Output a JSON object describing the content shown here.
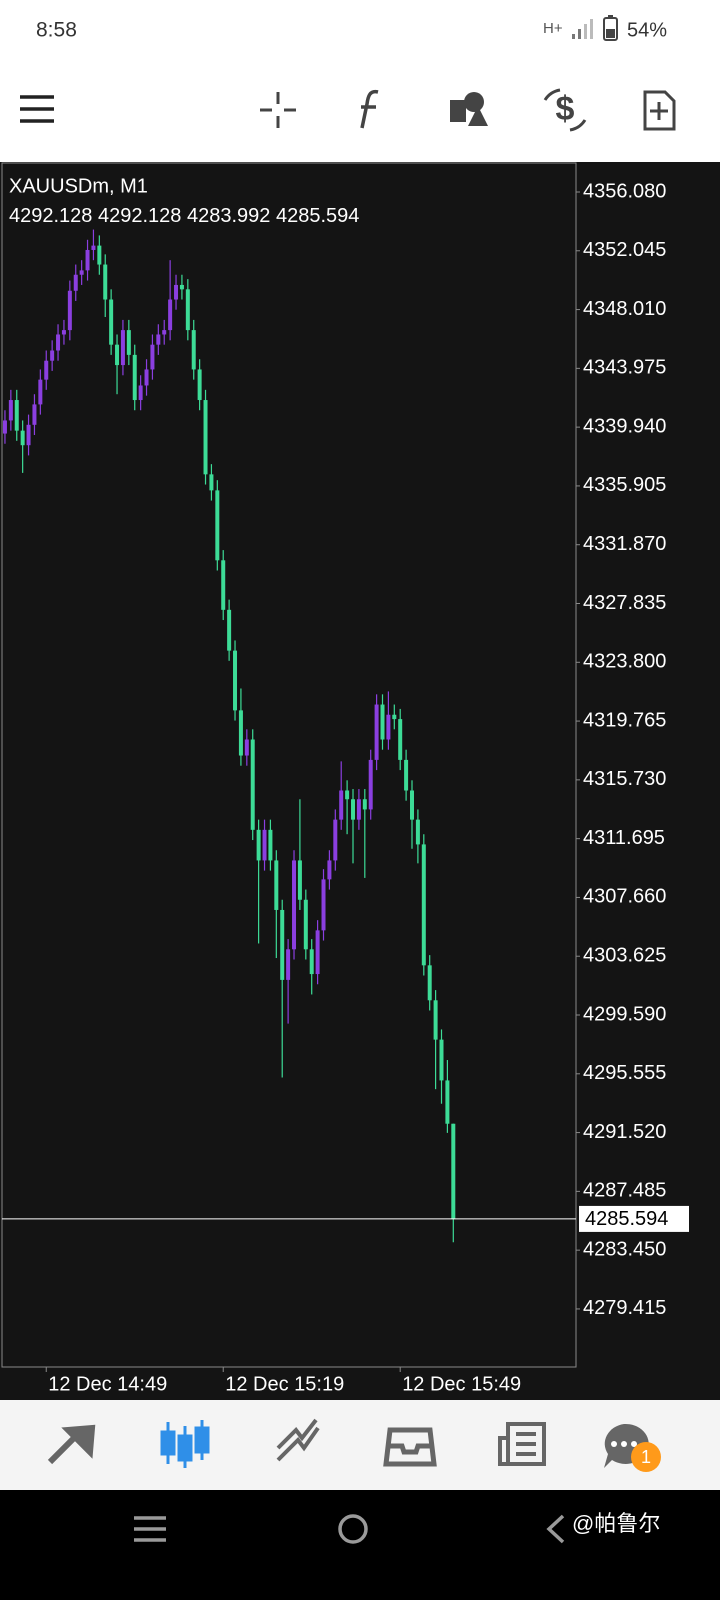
{
  "status_bar": {
    "time": "8:58",
    "network": "H+",
    "battery": "54%"
  },
  "chart_data": {
    "type": "candlestick",
    "title": "XAUUSDm, M1",
    "up_color": "#8b3fe0",
    "down_color": "#3ddc97",
    "open": [
      4339.5,
      4340.4,
      4341.8,
      4339.7,
      4338.7,
      4340.1,
      4341.5,
      4343.2,
      4344.5,
      4345.2,
      4346.3,
      4346.6,
      4349.3,
      4350.4,
      4350.7,
      4352.1,
      4352.4,
      4351.1,
      4348.7,
      4345.6,
      4344.2,
      4346.6,
      4344.9,
      4341.8,
      4342.8,
      4343.9,
      4345.6,
      4346.3,
      4346.6,
      4348.7,
      4349.7,
      4349.4,
      4346.6,
      4343.9,
      4341.8,
      4336.7,
      4335.6,
      4330.8,
      4327.4,
      4324.6,
      4320.5,
      4317.4,
      4318.5,
      4312.3,
      4310.2,
      4312.3,
      4310.2,
      4306.8,
      4302.0,
      4304.1,
      4310.2,
      4307.5,
      4304.1,
      4302.4,
      4305.4,
      4308.9,
      4310.2,
      4313.0,
      4315.0,
      4314.4,
      4313.0,
      4314.4,
      4313.7,
      4317.1,
      4320.9,
      4318.5,
      4320.2,
      4319.9,
      4317.1,
      4315.0,
      4313.0,
      4311.3,
      4303.0,
      4300.6,
      4297.9,
      4295.1,
      4292.128
    ],
    "high": [
      4341.1,
      4342.5,
      4342.5,
      4340.4,
      4340.8,
      4342.2,
      4343.9,
      4345.2,
      4345.9,
      4347.0,
      4347.3,
      4350.0,
      4351.1,
      4351.4,
      4352.8,
      4353.5,
      4353.1,
      4351.8,
      4349.4,
      4346.3,
      4347.3,
      4347.3,
      4345.6,
      4343.5,
      4344.6,
      4346.3,
      4347.0,
      4347.3,
      4351.4,
      4350.4,
      4350.4,
      4350.1,
      4347.3,
      4344.6,
      4342.5,
      4337.4,
      4336.3,
      4331.5,
      4328.1,
      4325.3,
      4322.0,
      4319.2,
      4319.2,
      4313.0,
      4313.0,
      4313.0,
      4310.9,
      4307.5,
      4304.8,
      4310.9,
      4314.4,
      4308.2,
      4304.8,
      4306.1,
      4309.6,
      4310.9,
      4313.7,
      4317.0,
      4315.7,
      4315.1,
      4315.1,
      4315.1,
      4317.8,
      4321.6,
      4321.6,
      4321.8,
      4320.9,
      4320.6,
      4317.8,
      4315.7,
      4313.7,
      4312.0,
      4303.7,
      4301.3,
      4298.6,
      4296.5,
      4292.128
    ],
    "low": [
      4338.8,
      4339.7,
      4339.0,
      4336.8,
      4338.0,
      4339.4,
      4340.8,
      4342.5,
      4343.8,
      4344.5,
      4345.6,
      4345.9,
      4348.6,
      4349.7,
      4350.0,
      4351.4,
      4350.4,
      4347.5,
      4344.9,
      4342.2,
      4343.5,
      4344.2,
      4341.1,
      4341.1,
      4342.1,
      4343.2,
      4344.9,
      4345.6,
      4345.9,
      4348.0,
      4348.7,
      4345.9,
      4343.2,
      4341.1,
      4336.0,
      4334.9,
      4330.1,
      4326.7,
      4323.9,
      4319.8,
      4316.7,
      4316.7,
      4311.6,
      4304.5,
      4309.5,
      4309.5,
      4303.5,
      4295.3,
      4299.0,
      4303.4,
      4306.8,
      4303.4,
      4301.0,
      4301.7,
      4304.7,
      4308.2,
      4309.5,
      4312.3,
      4312.0,
      4310.0,
      4312.3,
      4309.0,
      4313.0,
      4316.4,
      4317.8,
      4317.8,
      4319.2,
      4316.4,
      4314.3,
      4311.0,
      4310.0,
      4302.3,
      4299.9,
      4294.5,
      4293.5,
      4291.5,
      4283.992
    ],
    "close": [
      4340.4,
      4341.8,
      4339.7,
      4338.7,
      4340.1,
      4341.5,
      4343.2,
      4344.5,
      4345.2,
      4346.3,
      4346.6,
      4349.3,
      4350.4,
      4350.7,
      4352.1,
      4352.4,
      4351.1,
      4348.7,
      4345.6,
      4344.2,
      4346.6,
      4344.9,
      4341.8,
      4342.8,
      4343.9,
      4345.6,
      4346.3,
      4346.6,
      4348.7,
      4349.7,
      4349.4,
      4346.6,
      4343.9,
      4341.8,
      4336.7,
      4335.6,
      4330.8,
      4327.4,
      4324.6,
      4320.5,
      4317.4,
      4318.5,
      4312.3,
      4310.2,
      4312.3,
      4310.2,
      4306.8,
      4302.0,
      4304.1,
      4310.2,
      4307.5,
      4304.1,
      4302.4,
      4305.4,
      4308.9,
      4310.2,
      4313.0,
      4315.0,
      4314.4,
      4313.0,
      4314.4,
      4313.7,
      4317.1,
      4320.9,
      4318.5,
      4320.2,
      4319.9,
      4317.1,
      4315.0,
      4313.0,
      4311.3,
      4303.0,
      4300.6,
      4297.9,
      4295.1,
      4292.128,
      4285.594
    ],
    "xlim": [
      -0.5,
      96.8
    ],
    "xticks": [
      {
        "value": 7,
        "label": "12 Dec 14:49"
      },
      {
        "value": 37,
        "label": "12 Dec 15:19"
      },
      {
        "value": 67,
        "label": "12 Dec 15:49"
      }
    ],
    "ylim": [
      4275.43,
      4358.07
    ],
    "yticks": [
      {
        "value": 4356.08,
        "label": "4356.080"
      },
      4352.045,
      {
        "value": 4348.01,
        "label": "4348.010"
      },
      4343.975,
      {
        "value": 4339.94,
        "label": "4339.940"
      },
      4335.905,
      {
        "value": 4331.87,
        "label": "4331.870"
      },
      4327.835,
      {
        "value": 4323.8,
        "label": "4323.800"
      },
      4319.765,
      {
        "value": 4315.73,
        "label": "4315.730"
      },
      4311.695,
      {
        "value": 4307.66,
        "label": "4307.660"
      },
      4303.625,
      {
        "value": 4299.59,
        "label": "4299.590"
      },
      4295.555,
      {
        "value": 4291.52,
        "label": "4291.520"
      },
      4287.485,
      {
        "value": 4283.45,
        "label": "4283.450"
      },
      4279.415
    ],
    "grid": false
  },
  "bottom_nav": {
    "badge": "1"
  },
  "watermark": "@帕鲁尔"
}
